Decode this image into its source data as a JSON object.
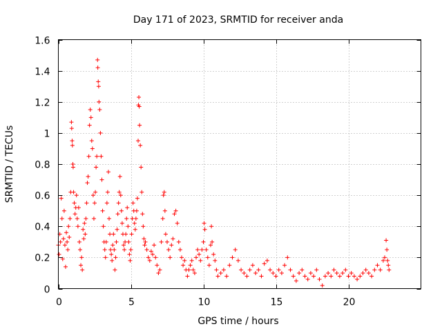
{
  "chart_data": {
    "type": "scatter",
    "title": "Day 171 of 2023, SRMTID for receiver anda",
    "xlabel": "GPS time / hours",
    "ylabel": "SRMTID / TECUs",
    "xlim": [
      0,
      25
    ],
    "ylim": [
      0,
      1.6
    ],
    "xticks": [
      0,
      5,
      10,
      15,
      20
    ],
    "yticks": [
      0,
      0.2,
      0.4,
      0.6,
      0.8,
      1,
      1.2,
      1.4,
      1.6
    ],
    "xtick_labels": [
      "0",
      "5",
      "10",
      "15",
      "20"
    ],
    "ytick_labels": [
      "0",
      "0.2",
      "0.4",
      "0.6",
      "0.8",
      "1",
      "1.2",
      "1.4",
      "1.6"
    ],
    "grid": true,
    "marker": "+",
    "color": "#ff0000",
    "series": [
      {
        "name": "SRMTID",
        "points": [
          [
            0.0,
            0.28
          ],
          [
            0.05,
            0.22
          ],
          [
            0.1,
            0.35
          ],
          [
            0.15,
            0.3
          ],
          [
            0.2,
            0.58
          ],
          [
            0.25,
            0.45
          ],
          [
            0.3,
            0.19
          ],
          [
            0.35,
            0.32
          ],
          [
            0.4,
            0.5
          ],
          [
            0.45,
            0.28
          ],
          [
            0.5,
            0.14
          ],
          [
            0.55,
            0.36
          ],
          [
            0.6,
            0.3
          ],
          [
            0.65,
            0.25
          ],
          [
            0.7,
            0.4
          ],
          [
            0.75,
            0.33
          ],
          [
            0.8,
            0.45
          ],
          [
            0.85,
            0.62
          ],
          [
            0.9,
            1.07
          ],
          [
            0.92,
            1.03
          ],
          [
            0.95,
            0.95
          ],
          [
            0.97,
            0.92
          ],
          [
            1.0,
            0.8
          ],
          [
            1.02,
            0.78
          ],
          [
            1.05,
            0.62
          ],
          [
            1.1,
            0.55
          ],
          [
            1.15,
            0.48
          ],
          [
            1.2,
            0.52
          ],
          [
            1.25,
            0.6
          ],
          [
            1.3,
            0.45
          ],
          [
            1.35,
            0.4
          ],
          [
            1.4,
            0.52
          ],
          [
            1.45,
            0.3
          ],
          [
            1.5,
            0.25
          ],
          [
            1.55,
            0.15
          ],
          [
            1.6,
            0.2
          ],
          [
            1.65,
            0.12
          ],
          [
            1.7,
            0.38
          ],
          [
            1.75,
            0.32
          ],
          [
            1.8,
            0.42
          ],
          [
            1.85,
            0.35
          ],
          [
            1.9,
            0.45
          ],
          [
            1.95,
            0.55
          ],
          [
            2.0,
            0.68
          ],
          [
            2.05,
            0.72
          ],
          [
            2.1,
            0.85
          ],
          [
            2.15,
            1.05
          ],
          [
            2.2,
            1.15
          ],
          [
            2.25,
            1.1
          ],
          [
            2.3,
            0.95
          ],
          [
            2.35,
            0.9
          ],
          [
            2.4,
            0.6
          ],
          [
            2.45,
            0.45
          ],
          [
            2.5,
            0.55
          ],
          [
            2.55,
            0.62
          ],
          [
            2.6,
            0.78
          ],
          [
            2.65,
            0.85
          ],
          [
            2.7,
            1.47
          ],
          [
            2.72,
            1.42
          ],
          [
            2.75,
            1.33
          ],
          [
            2.78,
            1.3
          ],
          [
            2.8,
            1.2
          ],
          [
            2.85,
            1.15
          ],
          [
            2.9,
            1.0
          ],
          [
            2.95,
            0.85
          ],
          [
            3.0,
            0.7
          ],
          [
            3.05,
            0.5
          ],
          [
            3.1,
            0.4
          ],
          [
            3.15,
            0.3
          ],
          [
            3.2,
            0.25
          ],
          [
            3.25,
            0.2
          ],
          [
            3.3,
            0.3
          ],
          [
            3.35,
            0.55
          ],
          [
            3.4,
            0.62
          ],
          [
            3.45,
            0.75
          ],
          [
            3.5,
            0.45
          ],
          [
            3.55,
            0.35
          ],
          [
            3.6,
            0.25
          ],
          [
            3.65,
            0.22
          ],
          [
            3.7,
            0.18
          ],
          [
            3.75,
            0.28
          ],
          [
            3.8,
            0.35
          ],
          [
            3.85,
            0.25
          ],
          [
            3.9,
            0.12
          ],
          [
            3.95,
            0.2
          ],
          [
            4.0,
            0.3
          ],
          [
            4.05,
            0.38
          ],
          [
            4.1,
            0.48
          ],
          [
            4.15,
            0.55
          ],
          [
            4.2,
            0.62
          ],
          [
            4.25,
            0.72
          ],
          [
            4.3,
            0.6
          ],
          [
            4.35,
            0.5
          ],
          [
            4.4,
            0.42
          ],
          [
            4.45,
            0.35
          ],
          [
            4.5,
            0.28
          ],
          [
            4.55,
            0.25
          ],
          [
            4.6,
            0.3
          ],
          [
            4.65,
            0.35
          ],
          [
            4.7,
            0.45
          ],
          [
            4.75,
            0.52
          ],
          [
            4.8,
            0.4
          ],
          [
            4.85,
            0.3
          ],
          [
            4.9,
            0.22
          ],
          [
            4.95,
            0.18
          ],
          [
            5.0,
            0.25
          ],
          [
            5.05,
            0.35
          ],
          [
            5.1,
            0.45
          ],
          [
            5.15,
            0.55
          ],
          [
            5.2,
            0.5
          ],
          [
            5.25,
            0.42
          ],
          [
            5.3,
            0.38
          ],
          [
            5.35,
            0.45
          ],
          [
            5.4,
            0.5
          ],
          [
            5.45,
            0.58
          ],
          [
            5.5,
            0.95
          ],
          [
            5.52,
            1.18
          ],
          [
            5.55,
            1.23
          ],
          [
            5.58,
            1.17
          ],
          [
            5.6,
            1.05
          ],
          [
            5.65,
            0.92
          ],
          [
            5.7,
            0.78
          ],
          [
            5.75,
            0.62
          ],
          [
            5.8,
            0.48
          ],
          [
            5.85,
            0.4
          ],
          [
            5.9,
            0.32
          ],
          [
            5.95,
            0.28
          ],
          [
            6.0,
            0.3
          ],
          [
            6.1,
            0.25
          ],
          [
            6.2,
            0.2
          ],
          [
            6.3,
            0.18
          ],
          [
            6.4,
            0.24
          ],
          [
            6.5,
            0.22
          ],
          [
            6.6,
            0.28
          ],
          [
            6.7,
            0.2
          ],
          [
            6.8,
            0.15
          ],
          [
            6.9,
            0.1
          ],
          [
            7.0,
            0.12
          ],
          [
            7.1,
            0.3
          ],
          [
            7.2,
            0.45
          ],
          [
            7.25,
            0.6
          ],
          [
            7.3,
            0.62
          ],
          [
            7.35,
            0.5
          ],
          [
            7.4,
            0.35
          ],
          [
            7.5,
            0.3
          ],
          [
            7.6,
            0.25
          ],
          [
            7.7,
            0.2
          ],
          [
            7.8,
            0.28
          ],
          [
            7.9,
            0.32
          ],
          [
            8.0,
            0.48
          ],
          [
            8.1,
            0.5
          ],
          [
            8.2,
            0.42
          ],
          [
            8.3,
            0.3
          ],
          [
            8.4,
            0.25
          ],
          [
            8.5,
            0.2
          ],
          [
            8.6,
            0.15
          ],
          [
            8.7,
            0.18
          ],
          [
            8.8,
            0.12
          ],
          [
            8.9,
            0.08
          ],
          [
            9.0,
            0.12
          ],
          [
            9.1,
            0.15
          ],
          [
            9.2,
            0.18
          ],
          [
            9.3,
            0.12
          ],
          [
            9.4,
            0.1
          ],
          [
            9.5,
            0.2
          ],
          [
            9.6,
            0.25
          ],
          [
            9.7,
            0.22
          ],
          [
            9.8,
            0.18
          ],
          [
            9.9,
            0.25
          ],
          [
            10.0,
            0.3
          ],
          [
            10.05,
            0.42
          ],
          [
            10.1,
            0.38
          ],
          [
            10.2,
            0.25
          ],
          [
            10.3,
            0.2
          ],
          [
            10.4,
            0.15
          ],
          [
            10.5,
            0.28
          ],
          [
            10.55,
            0.4
          ],
          [
            10.6,
            0.3
          ],
          [
            10.7,
            0.22
          ],
          [
            10.8,
            0.18
          ],
          [
            10.9,
            0.12
          ],
          [
            11.0,
            0.08
          ],
          [
            11.2,
            0.1
          ],
          [
            11.4,
            0.12
          ],
          [
            11.6,
            0.08
          ],
          [
            11.8,
            0.15
          ],
          [
            12.0,
            0.2
          ],
          [
            12.2,
            0.25
          ],
          [
            12.4,
            0.18
          ],
          [
            12.6,
            0.12
          ],
          [
            12.8,
            0.1
          ],
          [
            13.0,
            0.08
          ],
          [
            13.2,
            0.12
          ],
          [
            13.4,
            0.15
          ],
          [
            13.6,
            0.1
          ],
          [
            13.8,
            0.12
          ],
          [
            14.0,
            0.08
          ],
          [
            14.2,
            0.16
          ],
          [
            14.4,
            0.18
          ],
          [
            14.6,
            0.12
          ],
          [
            14.8,
            0.1
          ],
          [
            15.0,
            0.08
          ],
          [
            15.2,
            0.12
          ],
          [
            15.4,
            0.1
          ],
          [
            15.6,
            0.15
          ],
          [
            15.8,
            0.2
          ],
          [
            16.0,
            0.12
          ],
          [
            16.2,
            0.08
          ],
          [
            16.4,
            0.05
          ],
          [
            16.6,
            0.1
          ],
          [
            16.8,
            0.12
          ],
          [
            17.0,
            0.08
          ],
          [
            17.2,
            0.06
          ],
          [
            17.4,
            0.1
          ],
          [
            17.6,
            0.08
          ],
          [
            17.8,
            0.12
          ],
          [
            18.0,
            0.06
          ],
          [
            18.2,
            0.02
          ],
          [
            18.4,
            0.08
          ],
          [
            18.6,
            0.1
          ],
          [
            18.8,
            0.08
          ],
          [
            19.0,
            0.12
          ],
          [
            19.2,
            0.1
          ],
          [
            19.4,
            0.08
          ],
          [
            19.6,
            0.1
          ],
          [
            19.8,
            0.12
          ],
          [
            20.0,
            0.08
          ],
          [
            20.2,
            0.1
          ],
          [
            20.4,
            0.08
          ],
          [
            20.6,
            0.06
          ],
          [
            20.8,
            0.08
          ],
          [
            21.0,
            0.1
          ],
          [
            21.2,
            0.12
          ],
          [
            21.4,
            0.1
          ],
          [
            21.6,
            0.08
          ],
          [
            21.8,
            0.12
          ],
          [
            22.0,
            0.15
          ],
          [
            22.2,
            0.12
          ],
          [
            22.4,
            0.18
          ],
          [
            22.5,
            0.2
          ],
          [
            22.6,
            0.31
          ],
          [
            22.65,
            0.25
          ],
          [
            22.7,
            0.18
          ],
          [
            22.75,
            0.15
          ],
          [
            22.8,
            0.12
          ]
        ]
      }
    ]
  }
}
